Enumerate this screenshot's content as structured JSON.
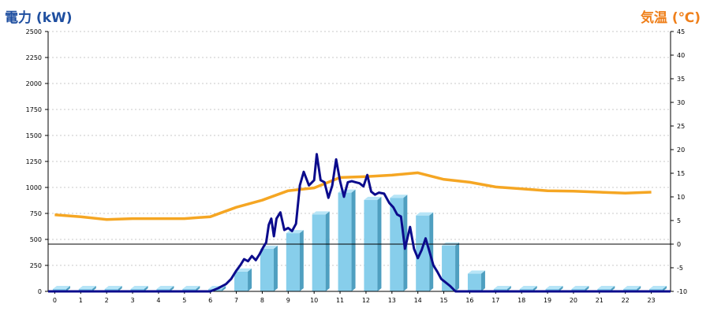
{
  "titles": {
    "left": "電力 (kW)",
    "right": "気温 (℃)"
  },
  "colors": {
    "left_title": "#1f4fa0",
    "right_title": "#ef7f1a",
    "bar": "#87ceeb",
    "bar_side": "#4f9fc0",
    "bar_top": "#b7e5f7",
    "power_line": "#0b0b8c",
    "temp_line": "#f5a623",
    "grid": "#c8c8c8"
  },
  "chart_data": {
    "type": "bar",
    "categories": [
      "0",
      "1",
      "2",
      "3",
      "4",
      "5",
      "6",
      "7",
      "8",
      "9",
      "10",
      "11",
      "12",
      "13",
      "14",
      "15",
      "16",
      "17",
      "18",
      "19",
      "20",
      "21",
      "22",
      "23"
    ],
    "y_left": {
      "label": "電力 (kW)",
      "min": 0,
      "max": 2500,
      "ticks": [
        "0",
        "250",
        "500",
        "750",
        "1000",
        "1250",
        "1500",
        "1750",
        "2000",
        "2250",
        "2500"
      ]
    },
    "y_right": {
      "label": "気温 (℃)",
      "min": -10,
      "max": 45,
      "ticks": [
        "-10",
        "-5",
        "0",
        "5",
        "10",
        "15",
        "20",
        "25",
        "30",
        "35",
        "40",
        "45"
      ]
    },
    "grid": true,
    "series": [
      {
        "kind": "bar",
        "axis": "left",
        "values": [
          0,
          0,
          0,
          0,
          0,
          0,
          0,
          190,
          410,
          560,
          740,
          950,
          880,
          900,
          730,
          440,
          170,
          0,
          0,
          0,
          0,
          0,
          0,
          0
        ]
      },
      {
        "kind": "line",
        "axis": "left",
        "x": [
          6.0,
          6.3,
          6.6,
          6.8,
          7.0,
          7.15,
          7.3,
          7.45,
          7.6,
          7.75,
          7.9,
          8.05,
          8.15,
          8.25,
          8.35,
          8.45,
          8.55,
          8.7,
          8.85,
          9.0,
          9.15,
          9.3,
          9.45,
          9.6,
          9.8,
          10.0,
          10.1,
          10.25,
          10.4,
          10.55,
          10.7,
          10.85,
          11.0,
          11.15,
          11.3,
          11.45,
          11.6,
          11.75,
          11.9,
          12.05,
          12.2,
          12.35,
          12.5,
          12.7,
          12.9,
          13.05,
          13.2,
          13.35,
          13.5,
          13.7,
          13.85,
          14.0,
          14.15,
          14.3,
          14.45,
          14.6,
          14.75,
          14.9,
          15.1,
          15.25,
          15.45,
          15.6,
          15.8,
          16.0,
          16.3,
          16.6,
          16.8,
          16.9,
          17.0
        ],
        "values": [
          0,
          30,
          70,
          120,
          200,
          250,
          310,
          290,
          340,
          300,
          360,
          430,
          470,
          640,
          700,
          530,
          700,
          760,
          590,
          610,
          580,
          650,
          1020,
          1150,
          1020,
          1070,
          1320,
          1070,
          1050,
          900,
          1020,
          1270,
          1060,
          910,
          1050,
          1060,
          1050,
          1040,
          1010,
          1120,
          960,
          930,
          950,
          940,
          850,
          810,
          740,
          720,
          410,
          620,
          410,
          320,
          400,
          510,
          380,
          250,
          190,
          120,
          80,
          50,
          0,
          0,
          0,
          0,
          0,
          0,
          0,
          0,
          0
        ]
      },
      {
        "kind": "line",
        "axis": "right",
        "x": [
          0,
          1,
          2,
          3,
          4,
          5,
          6,
          7,
          8,
          9,
          10,
          11,
          12,
          13,
          14,
          15,
          16,
          17,
          18,
          19,
          20,
          21,
          22,
          23
        ],
        "values": [
          6.2,
          5.8,
          5.2,
          5.4,
          5.4,
          5.4,
          5.8,
          7.8,
          9.3,
          11.3,
          11.9,
          14.1,
          14.3,
          14.6,
          15.1,
          13.7,
          13.1,
          12.1,
          11.7,
          11.3,
          11.2,
          11.0,
          10.8,
          11.0
        ]
      }
    ]
  }
}
